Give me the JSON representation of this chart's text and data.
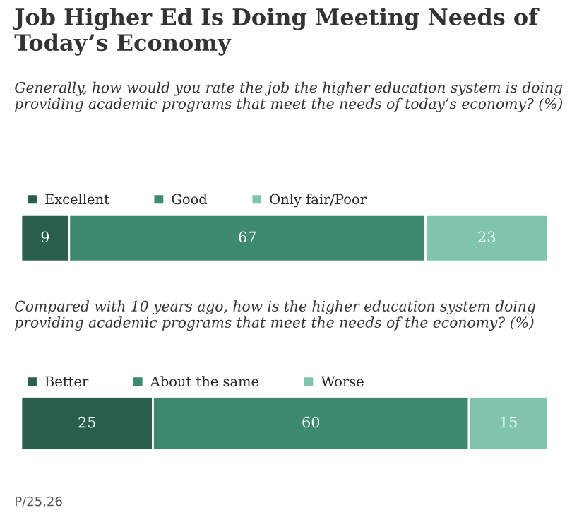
{
  "chart_data": [
    {
      "type": "bar",
      "orientation": "horizontal",
      "stacked": true,
      "title": "Job Higher Ed Is Doing Meeting Needs of Today’s Economy",
      "subtitle": "Generally, how would you rate the job the higher education system is doing providing academic programs that meet the needs of today’s economy? (%)",
      "categories": [
        null
      ],
      "legend": "top",
      "data_labels": true,
      "series": [
        {
          "name": "Excellent",
          "color": "#2b5f4d",
          "values": [
            9
          ]
        },
        {
          "name": "Good",
          "color": "#3d8a70",
          "values": [
            67
          ]
        },
        {
          "name": "Only fair/Poor",
          "color": "#80c4ae",
          "values": [
            23
          ]
        }
      ]
    },
    {
      "type": "bar",
      "orientation": "horizontal",
      "stacked": true,
      "title": "Compared with 10 years ago, how is the higher education system doing providing academic programs that meet the needs of the economy? (%)",
      "categories": [
        null
      ],
      "legend": "top",
      "data_labels": true,
      "annotations": [
        "P/25,26"
      ],
      "series": [
        {
          "name": "Better",
          "color": "#2b5f4d",
          "values": [
            25
          ]
        },
        {
          "name": "About the same",
          "color": "#3d8a70",
          "values": [
            60
          ]
        },
        {
          "name": "Worse",
          "color": "#80c4ae",
          "values": [
            15
          ]
        }
      ]
    }
  ]
}
